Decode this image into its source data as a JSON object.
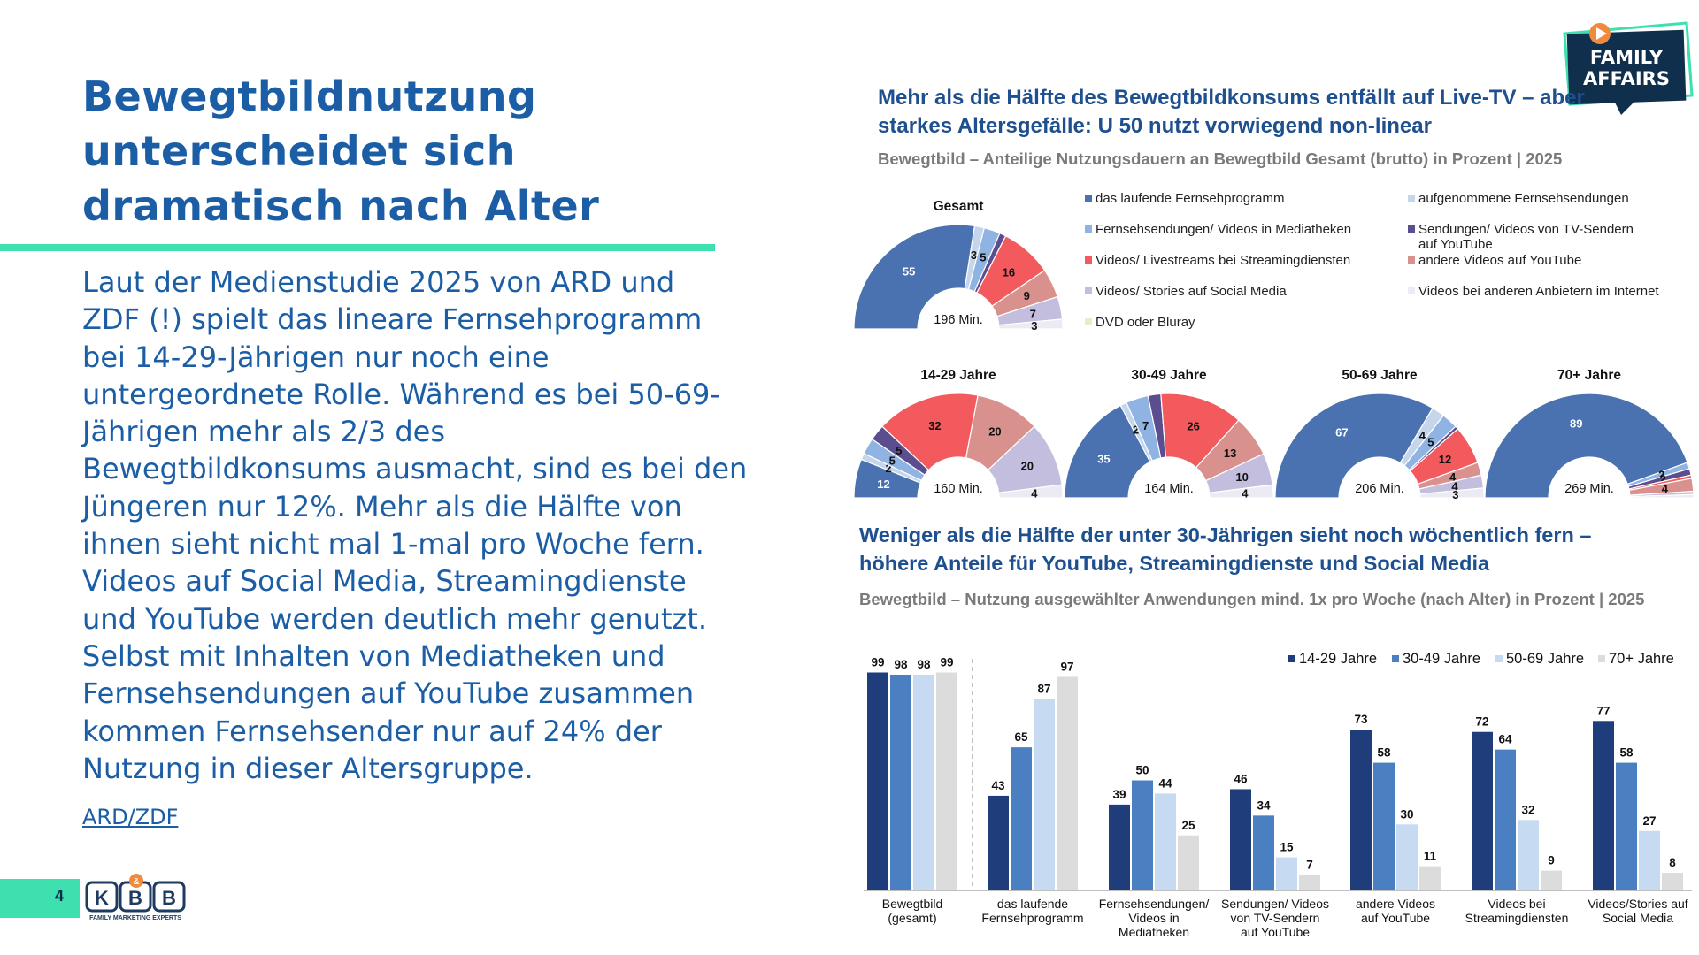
{
  "slide": {
    "title_lines": [
      "Bewegtbildnutzung",
      "unterscheidet sich",
      "dramatisch nach Alter"
    ],
    "body_lines": [
      "Laut der Medienstudie 2025 von ARD und",
      "ZDF (!) spielt das lineare Fernsehprogramm",
      "bei 14-29-Jährigen nur noch eine",
      "untergeordnete Rolle. Während es bei 50-69-",
      "Jährigen mehr als 2/3 des",
      "Bewegtbildkonsums ausmacht, sind es bei den",
      "Jüngeren nur 12%. Mehr als die Hälfte von",
      "ihnen sieht nicht mal 1-mal pro Woche fern.",
      "Videos auf Social Media, Streamingdienste",
      "und YouTube werden deutlich mehr genutzt.",
      "Selbst mit Inhalten von Mediatheken und",
      "Fernsehsendungen auf YouTube zusammen",
      "kommen Fernsehsender nur auf 24% der",
      "Nutzung in dieser Altersgruppe."
    ],
    "source_link": "ARD/ZDF",
    "page_number": "4",
    "logo_kbb_letters": [
      "K",
      "B",
      "&",
      "B"
    ],
    "logo_kbb_tagline": "FAMILY MARKETING EXPERTS",
    "logo_family_affairs": [
      "FAMILY",
      "AFFAIRS"
    ]
  },
  "colors": {
    "accent_green": "#3ee0b0",
    "brand_blue": "#1b5ea6",
    "dark_navy": "#1e3a5f"
  },
  "chart_data": [
    {
      "type": "pie",
      "variant": "semi-donut",
      "title": "Mehr als die Hälfte des Bewegtbildkonsums entfällt auf Live-TV – aber starkes Altersgefälle: U 50 nutzt vorwiegend non-linear",
      "title_lines": [
        "Mehr als die Hälfte des Bewegtbildkonsums entfällt auf Live-TV – aber",
        "starkes Altersgefälle: U 50 nutzt vorwiegend non-linear"
      ],
      "subtitle": "Bewegtbild – Anteilige Nutzungsdauern an Bewegtbild Gesamt (brutto) in Prozent | 2025",
      "legend": [
        {
          "label": "das laufende Fernsehprogramm",
          "color": "#4a72b0"
        },
        {
          "label": "aufgenommene Fernsehsendungen",
          "color": "#c5d5ea"
        },
        {
          "label": "Fernsehsendungen/ Videos in Mediatheken",
          "color": "#8fb3e3"
        },
        {
          "label": "Sendungen/ Videos von TV-Sendern auf YouTube",
          "color": "#5b4e8e"
        },
        {
          "label": "Videos/ Livestreams bei Streamingdiensten",
          "color": "#f25a5e"
        },
        {
          "label": "andere Videos auf YouTube",
          "color": "#d9918e"
        },
        {
          "label": "Videos/ Stories auf Social Media",
          "color": "#c4bede"
        },
        {
          "label": "Videos bei anderen Anbietern im Internet",
          "color": "#ecebf3"
        },
        {
          "label": "DVD oder Bluray",
          "color": "#e9ebc9"
        }
      ],
      "groups": [
        {
          "name": "Gesamt",
          "total": "196 Min.",
          "values": [
            55,
            3,
            5,
            2,
            16,
            9,
            7,
            3,
            0
          ],
          "labels": [
            "55",
            "3",
            "5",
            "",
            "16",
            "9",
            "7",
            "3",
            ""
          ]
        },
        {
          "name": "14-29 Jahre",
          "total": "160 Min.",
          "values": [
            12,
            2,
            5,
            5,
            32,
            20,
            20,
            4,
            0
          ],
          "labels": [
            "12",
            "2",
            "5",
            "5",
            "32",
            "20",
            "20",
            "4",
            ""
          ]
        },
        {
          "name": "30-49 Jahre",
          "total": "164 Min.",
          "values": [
            35,
            2,
            7,
            4,
            26,
            13,
            10,
            4,
            0
          ],
          "labels": [
            "35",
            "2",
            "7",
            "",
            "26",
            "13",
            "10",
            "4",
            ""
          ]
        },
        {
          "name": "50-69 Jahre",
          "total": "206 Min.",
          "values": [
            67,
            4,
            5,
            1,
            12,
            4,
            4,
            3,
            0
          ],
          "labels": [
            "67",
            "4",
            "5",
            "",
            "12",
            "4",
            "4",
            "3",
            ""
          ]
        },
        {
          "name": "70+ Jahre",
          "total": "269 Min.",
          "values": [
            89,
            0,
            2,
            2,
            1,
            4,
            1,
            1,
            0
          ],
          "labels": [
            "89",
            "",
            "2",
            "2",
            "",
            "4",
            "",
            "",
            ""
          ]
        }
      ]
    },
    {
      "type": "bar",
      "title": "Weniger als die Hälfte der unter 30-Jährigen sieht noch wöchentlich fern – höhere Anteile für YouTube, Streamingdienste und Social Media",
      "title_lines": [
        "Weniger als die Hälfte der unter 30-Jährigen sieht noch wöchentlich fern –",
        "höhere Anteile für YouTube, Streamingdienste und Social Media"
      ],
      "subtitle": "Bewegtbild – Nutzung ausgewählter Anwendungen mind. 1x pro Woche (nach Alter) in Prozent | 2025",
      "categories": [
        [
          "Bewegtbild",
          "(gesamt)"
        ],
        [
          "das laufende",
          "Fernsehprogramm"
        ],
        [
          "Fernsehsendungen/",
          "Videos in",
          "Mediatheken"
        ],
        [
          "Sendungen/ Videos",
          "von TV-Sendern",
          "auf YouTube"
        ],
        [
          "andere Videos",
          "auf YouTube"
        ],
        [
          "Videos bei",
          "Streamingdiensten"
        ],
        [
          "Videos/Stories auf",
          "Social Media"
        ]
      ],
      "series": [
        {
          "name": "14-29 Jahre",
          "color": "#1f3d7a",
          "values": [
            99,
            43,
            39,
            46,
            73,
            72,
            77
          ]
        },
        {
          "name": "30-49 Jahre",
          "color": "#4a7fc1",
          "values": [
            98,
            65,
            50,
            34,
            58,
            64,
            58
          ]
        },
        {
          "name": "50-69 Jahre",
          "color": "#c6daf2",
          "values": [
            98,
            87,
            44,
            15,
            30,
            32,
            27
          ]
        },
        {
          "name": "70+ Jahre",
          "color": "#dcdcdc",
          "values": [
            99,
            97,
            25,
            7,
            11,
            9,
            8
          ]
        }
      ],
      "ylim": [
        0,
        100
      ],
      "grid": false,
      "legend_position": "top-right"
    }
  ]
}
